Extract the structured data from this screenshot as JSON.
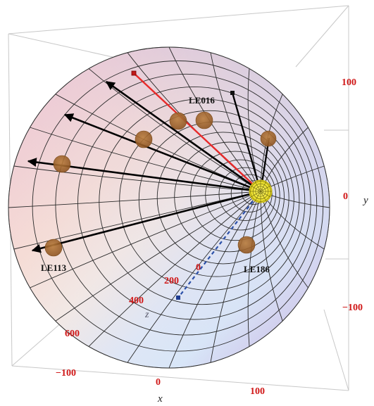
{
  "labels": {
    "event_le016": "LE016",
    "event_le113": "LE113",
    "event_le186": "LE186"
  },
  "axes": {
    "x": {
      "label": "x",
      "ticks": [
        "−100",
        "0",
        "100"
      ]
    },
    "y": {
      "label": "y",
      "ticks": [
        "100",
        "0",
        "−100"
      ]
    },
    "z": {
      "label": "z",
      "ticks": [
        "0",
        "200",
        "400",
        "600"
      ]
    }
  },
  "colors": {
    "tick_text": "#d01818",
    "track_primary": "#000000",
    "track_highlight": "#e82a2a",
    "track_dashed": "#2a4fa8",
    "hit_marker": "#a86a2c",
    "vertex": "#f5ec3a",
    "grid_line": "#2a2a2a"
  },
  "tracks": [
    {
      "name": "track-black-1",
      "color": "black"
    },
    {
      "name": "track-black-2",
      "color": "black"
    },
    {
      "name": "track-black-3",
      "color": "black"
    },
    {
      "name": "track-black-4",
      "color": "black"
    },
    {
      "name": "track-black-5",
      "color": "black"
    },
    {
      "name": "track-red",
      "color": "red"
    },
    {
      "name": "track-le016",
      "color": "black"
    },
    {
      "name": "track-dashed-blue",
      "color": "blue"
    }
  ]
}
